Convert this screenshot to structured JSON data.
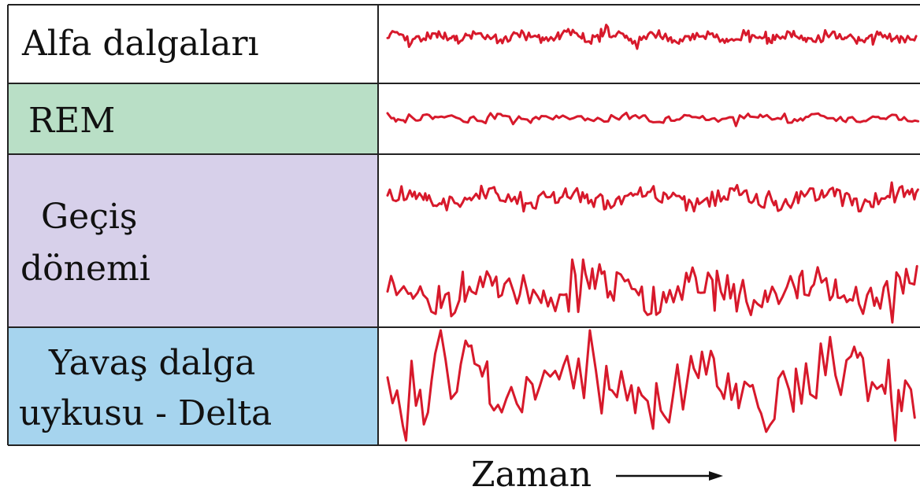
{
  "colors": {
    "wave": "#d7192b",
    "rows": [
      "#ffffff",
      "#b9dfc6",
      "#d7d0ea",
      "#a6d4ee"
    ],
    "border": "#222222"
  },
  "rows": [
    {
      "label_lines": [
        "Alfa dalgaları"
      ]
    },
    {
      "label_lines": [
        "REM"
      ]
    },
    {
      "label_lines": [
        "Geçiş",
        "dönemi"
      ]
    },
    {
      "label_lines": [
        "Yavaş dalga",
        "uykusu - Delta"
      ]
    }
  ],
  "waves": [
    {
      "row": 0,
      "amplitude": 0.45,
      "density": 2.4
    },
    {
      "row": 1,
      "amplitude": 0.35,
      "density": 1.5
    },
    {
      "row": 2,
      "amplitude": 0.55,
      "density": 1.9
    },
    {
      "row": 2,
      "amplitude": 0.95,
      "density": 1.4
    },
    {
      "row": 3,
      "amplitude": 1.0,
      "density": 1.1
    }
  ],
  "time_axis": {
    "label": "Zaman"
  }
}
